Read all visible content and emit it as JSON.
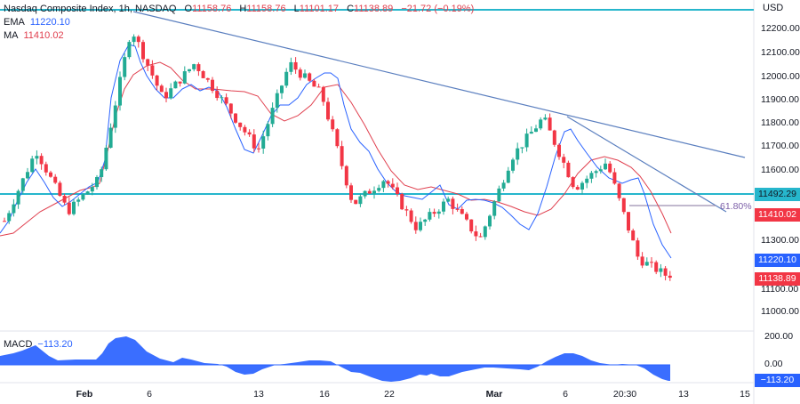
{
  "header": {
    "symbol_title": "Nasdaq Composite Index, 1h, NASDAQ",
    "open_label": "O",
    "open": "11158.76",
    "high_label": "H",
    "high": "11158.76",
    "low_label": "L",
    "low": "11101.17",
    "close_label": "C",
    "close": "11138.89",
    "change": "−21.72 (−0.19%)"
  },
  "indicators": {
    "ema_label": "EMA",
    "ema_value": "11220.10",
    "ma_label": "MA",
    "ma_value": "11410.02",
    "macd_label": "MACD",
    "macd_value": "−113.20"
  },
  "price_axis": {
    "currency": "USD",
    "ticks": [
      "12200.00",
      "12100.00",
      "12000.00",
      "11900.00",
      "11800.00",
      "11700.00",
      "11600.00",
      "11300.00",
      "11100.00",
      "11000.00"
    ],
    "tags": [
      {
        "label": "11492.29",
        "color": "#26b6cc",
        "text_color": "#131722"
      },
      {
        "label": "11410.02",
        "color": "#f23645",
        "text_color": "#ffffff"
      },
      {
        "label": "11220.10",
        "color": "#2962ff",
        "text_color": "#ffffff"
      },
      {
        "label": "11138.89",
        "color": "#f23645",
        "text_color": "#ffffff"
      }
    ]
  },
  "macd_axis": {
    "ticks": [
      "200.00",
      "0.00"
    ],
    "tag": {
      "label": "−113.20",
      "color": "#2962ff"
    }
  },
  "time_axis": {
    "labels": [
      {
        "text": "Feb",
        "bold": true
      },
      {
        "text": "6",
        "bold": false
      },
      {
        "text": "13",
        "bold": false
      },
      {
        "text": "16",
        "bold": false
      },
      {
        "text": "22",
        "bold": false
      },
      {
        "text": "Mar",
        "bold": true
      },
      {
        "text": "6",
        "bold": false
      },
      {
        "text": "20:30",
        "bold": false
      },
      {
        "text": "13",
        "bold": false
      },
      {
        "text": "15",
        "bold": false
      }
    ]
  },
  "annotations": {
    "fib_label": "61.80%",
    "horizontal_level": "11492.29"
  },
  "colors": {
    "up": "#22ab94",
    "down": "#f23645",
    "ema": "#2962ff",
    "ma": "#e0404f",
    "trendline": "#5b7fbf",
    "support": "#26b6cc",
    "macd_fill": "#2962ff",
    "fib": "#7b5ea7"
  },
  "chart_data": {
    "type": "candlestick",
    "title": "Nasdaq Composite Index, 1h, NASDAQ",
    "xlabel": "",
    "ylabel": "USD",
    "ylim": [
      10950,
      12270
    ],
    "x_ticks": [
      "Feb",
      "6",
      "13",
      "16",
      "22",
      "Mar",
      "6",
      "20:30",
      "13",
      "15"
    ],
    "y_ticks": [
      11000,
      11100,
      11200,
      11300,
      11400,
      11500,
      11600,
      11700,
      11800,
      11900,
      12000,
      12100,
      12200
    ],
    "last": {
      "open": 11158.76,
      "high": 11158.76,
      "low": 11101.17,
      "close": 11138.89,
      "change": -21.72,
      "change_pct": -0.19
    },
    "overlays": [
      {
        "name": "EMA",
        "value": 11220.1
      },
      {
        "name": "MA",
        "value": 11410.02
      },
      {
        "name": "Horizontal level",
        "value": 11492.29
      },
      {
        "name": "Fibonacci 61.80%",
        "value": 11440
      },
      {
        "name": "Descending trendline (upper)",
        "from": 12260,
        "to": 11650
      },
      {
        "name": "Descending trendline (lower)",
        "from": 11820,
        "to": 11420
      }
    ],
    "approx_close_path": [
      {
        "x": "late Jan",
        "close": 11380
      },
      {
        "x": "Jan 30",
        "close": 11680
      },
      {
        "x": "Jan 31",
        "close": 11420
      },
      {
        "x": "Feb 2",
        "close": 11560
      },
      {
        "x": "Feb 3",
        "close": 12200
      },
      {
        "x": "Feb 6",
        "close": 11900
      },
      {
        "x": "Feb 8",
        "close": 12050
      },
      {
        "x": "Feb 10",
        "close": 11870
      },
      {
        "x": "Feb 13",
        "close": 11680
      },
      {
        "x": "Feb 15",
        "close": 12050
      },
      {
        "x": "Feb 17",
        "close": 11920
      },
      {
        "x": "Feb 21",
        "close": 11450
      },
      {
        "x": "Feb 23",
        "close": 11560
      },
      {
        "x": "Feb 24",
        "close": 11350
      },
      {
        "x": "Feb 27",
        "close": 11470
      },
      {
        "x": "Mar 2",
        "close": 11300
      },
      {
        "x": "Mar 3",
        "close": 11650
      },
      {
        "x": "Mar 6",
        "close": 11820
      },
      {
        "x": "Mar 8",
        "close": 11520
      },
      {
        "x": "Mar 9",
        "close": 11630
      },
      {
        "x": "Mar 10",
        "close": 11220
      },
      {
        "x": "Mar 10 last",
        "close": 11138.89
      }
    ],
    "macd": {
      "ylim": [
        -150,
        230
      ],
      "y_ticks": [
        200,
        0
      ],
      "last": -113.2,
      "approx_values": [
        60,
        110,
        30,
        30,
        200,
        180,
        20,
        40,
        -5,
        -90,
        -10,
        40,
        40,
        -60,
        -120,
        -80,
        -90,
        -40,
        -10,
        -40,
        90,
        5,
        0,
        -113
      ]
    }
  }
}
